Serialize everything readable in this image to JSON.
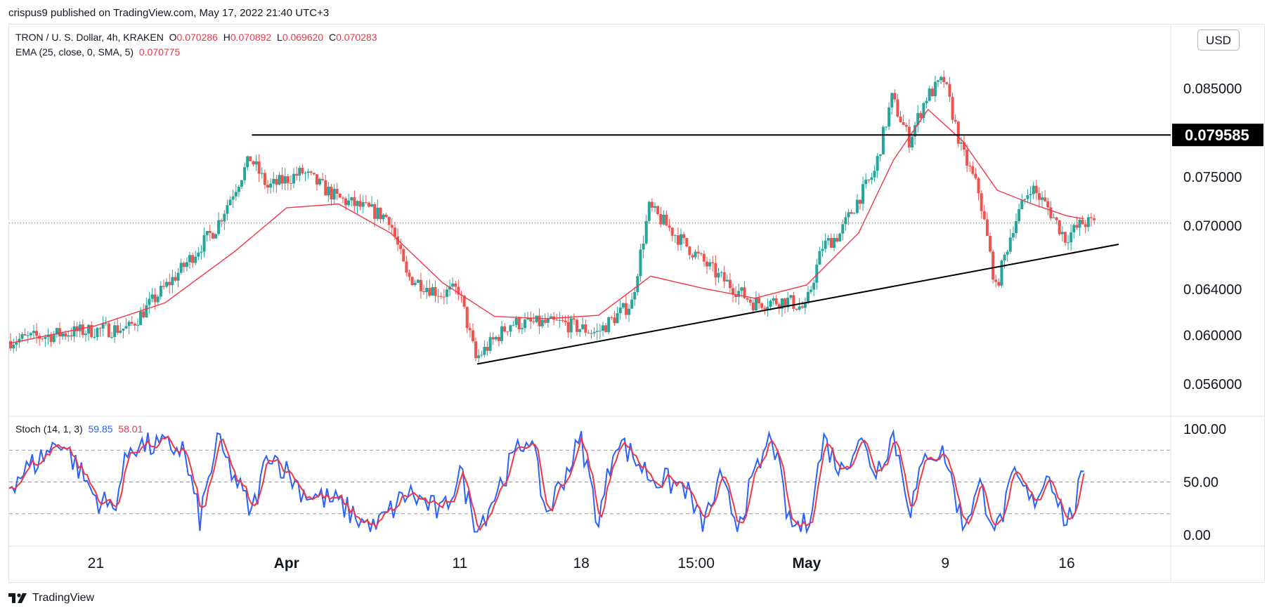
{
  "header": {
    "publisher_text": "crispus9 published on TradingView.com, May 17, 2022 21:40 UTC+3"
  },
  "legend": {
    "symbol": "TRON / U. S. Dollar, 4h, KRAKEN",
    "o_label": "O",
    "o_value": "0.070286",
    "h_label": "H",
    "h_value": "0.070892",
    "l_label": "L",
    "l_value": "0.069620",
    "c_label": "C",
    "c_value": "0.070283",
    "ema_label": "EMA (25, close, 0, SMA, 5)",
    "ema_value": "0.070775",
    "stoch_label": "Stoch (14, 1, 3)",
    "stoch_k": "59.85",
    "stoch_d": "58.01"
  },
  "currency_button": "USD",
  "footer": {
    "brand": "TradingView"
  },
  "colors": {
    "up": "#26a69a",
    "down": "#ef5350",
    "ema": "#f23645",
    "k": "#2962ff",
    "d": "#f23645",
    "grid": "#e0e3eb",
    "trend": "#000000"
  },
  "chart_data": [
    {
      "type": "candlestick",
      "title": "TRON / U. S. Dollar, 4h, KRAKEN",
      "y_scale": "log",
      "y_ticks": [
        "0.056000",
        "0.060000",
        "0.064000",
        "0.070000",
        "0.075000",
        "0.085000"
      ],
      "y_tick_values": [
        0.056,
        0.06,
        0.064,
        0.07,
        0.075,
        0.085
      ],
      "ylim": [
        0.0535,
        0.093
      ],
      "x_ticks": [
        "21",
        "Apr",
        "11",
        "18",
        "15:00",
        "May",
        "9",
        "16"
      ],
      "x_tick_dates": [
        "2022-03-21",
        "2022-04-01",
        "2022-04-11",
        "2022-04-18",
        "2022-04-24T15:00",
        "2022-05-01",
        "2022-05-09",
        "2022-05-16"
      ],
      "x_range": [
        "2022-03-16",
        "2022-05-22"
      ],
      "last_price": 0.070283,
      "resistance": {
        "value": 0.079585,
        "label": "0.079585",
        "from": "2022-03-30",
        "to": "2022-05-22"
      },
      "support_trendline": {
        "from": [
          "2022-04-12",
          0.0576
        ],
        "to": [
          "2022-05-19",
          0.0682
        ]
      },
      "ema_anchor_path": [
        [
          "2022-03-16",
          0.0593
        ],
        [
          "2022-03-21",
          0.0608
        ],
        [
          "2022-03-25",
          0.0628
        ],
        [
          "2022-03-29",
          0.0675
        ],
        [
          "2022-04-01",
          0.0718
        ],
        [
          "2022-04-04",
          0.0722
        ],
        [
          "2022-04-07",
          0.0693
        ],
        [
          "2022-04-10",
          0.0646
        ],
        [
          "2022-04-13",
          0.0616
        ],
        [
          "2022-04-16",
          0.0614
        ],
        [
          "2022-04-19",
          0.0617
        ],
        [
          "2022-04-22",
          0.0652
        ],
        [
          "2022-04-25",
          0.0641
        ],
        [
          "2022-04-28",
          0.0632
        ],
        [
          "2022-05-01",
          0.0644
        ],
        [
          "2022-05-04",
          0.0693
        ],
        [
          "2022-05-06",
          0.0768
        ],
        [
          "2022-05-08",
          0.0825
        ],
        [
          "2022-05-10",
          0.0789
        ],
        [
          "2022-05-12",
          0.0736
        ],
        [
          "2022-05-14",
          0.0722
        ],
        [
          "2022-05-16",
          0.071
        ],
        [
          "2022-05-17",
          0.0707
        ]
      ],
      "price_anchor_path": [
        [
          "2022-03-16",
          0.0595
        ],
        [
          "2022-03-20",
          0.0603
        ],
        [
          "2022-03-23",
          0.0606
        ],
        [
          "2022-03-26",
          0.0658
        ],
        [
          "2022-03-28",
          0.0698
        ],
        [
          "2022-03-30",
          0.077
        ],
        [
          "2022-03-31",
          0.0739
        ],
        [
          "2022-04-02",
          0.0755
        ],
        [
          "2022-04-04",
          0.0728
        ],
        [
          "2022-04-07",
          0.0708
        ],
        [
          "2022-04-08",
          0.0652
        ],
        [
          "2022-04-10",
          0.0636
        ],
        [
          "2022-04-11",
          0.064
        ],
        [
          "2022-04-12",
          0.058
        ],
        [
          "2022-04-14",
          0.061
        ],
        [
          "2022-04-17",
          0.061
        ],
        [
          "2022-04-19",
          0.0602
        ],
        [
          "2022-04-21",
          0.0628
        ],
        [
          "2022-04-22",
          0.0718
        ],
        [
          "2022-04-24",
          0.0683
        ],
        [
          "2022-04-26",
          0.0652
        ],
        [
          "2022-04-28",
          0.0628
        ],
        [
          "2022-04-30",
          0.063
        ],
        [
          "2022-05-01",
          0.0622
        ],
        [
          "2022-05-02",
          0.068
        ],
        [
          "2022-05-03",
          0.0692
        ],
        [
          "2022-05-04",
          0.0725
        ],
        [
          "2022-05-05",
          0.0755
        ],
        [
          "2022-05-06",
          0.0838
        ],
        [
          "2022-05-07",
          0.079
        ],
        [
          "2022-05-08",
          0.084
        ],
        [
          "2022-05-09",
          0.086
        ],
        [
          "2022-05-10",
          0.078
        ],
        [
          "2022-05-11",
          0.0735
        ],
        [
          "2022-05-12",
          0.064
        ],
        [
          "2022-05-13",
          0.07
        ],
        [
          "2022-05-14",
          0.074
        ],
        [
          "2022-05-15",
          0.0718
        ],
        [
          "2022-05-16",
          0.0688
        ],
        [
          "2022-05-17",
          0.0703
        ]
      ]
    },
    {
      "type": "line",
      "title": "Stoch (14, 1, 3)",
      "ylim": [
        0,
        100
      ],
      "y_ticks": [
        "0.00",
        "50.00",
        "100.00"
      ],
      "y_tick_values": [
        0,
        50,
        100
      ],
      "bands": [
        20,
        50,
        80
      ],
      "series": [
        {
          "name": "%K",
          "last": 59.85
        },
        {
          "name": "%D",
          "last": 58.01
        }
      ],
      "k_anchor_path": [
        [
          "2022-03-16",
          48
        ],
        [
          "2022-03-18",
          75
        ],
        [
          "2022-03-19",
          90
        ],
        [
          "2022-03-21",
          35
        ],
        [
          "2022-03-22",
          25
        ],
        [
          "2022-03-23",
          85
        ],
        [
          "2022-03-26",
          82
        ],
        [
          "2022-03-27",
          15
        ],
        [
          "2022-03-28",
          88
        ],
        [
          "2022-03-30",
          20
        ],
        [
          "2022-03-31",
          80
        ],
        [
          "2022-04-02",
          40
        ],
        [
          "2022-04-04",
          30
        ],
        [
          "2022-04-06",
          5
        ],
        [
          "2022-04-08",
          40
        ],
        [
          "2022-04-10",
          20
        ],
        [
          "2022-04-11",
          60
        ],
        [
          "2022-04-12",
          5
        ],
        [
          "2022-04-14",
          70
        ],
        [
          "2022-04-15",
          95
        ],
        [
          "2022-04-16",
          20
        ],
        [
          "2022-04-18",
          90
        ],
        [
          "2022-04-19",
          12
        ],
        [
          "2022-04-20",
          92
        ],
        [
          "2022-04-22",
          55
        ],
        [
          "2022-04-24",
          45
        ],
        [
          "2022-04-25",
          8
        ],
        [
          "2022-04-26",
          50
        ],
        [
          "2022-04-27",
          12
        ],
        [
          "2022-04-29",
          95
        ],
        [
          "2022-04-30",
          10
        ],
        [
          "2022-05-01",
          8
        ],
        [
          "2022-05-02",
          90
        ],
        [
          "2022-05-03",
          60
        ],
        [
          "2022-05-04",
          92
        ],
        [
          "2022-05-05",
          60
        ],
        [
          "2022-05-06",
          95
        ],
        [
          "2022-05-07",
          25
        ],
        [
          "2022-05-08",
          80
        ],
        [
          "2022-05-09",
          75
        ],
        [
          "2022-05-10",
          10
        ],
        [
          "2022-05-11",
          45
        ],
        [
          "2022-05-12",
          5
        ],
        [
          "2022-05-13",
          55
        ],
        [
          "2022-05-14",
          30
        ],
        [
          "2022-05-15",
          60
        ],
        [
          "2022-05-16",
          10
        ],
        [
          "2022-05-16T12:00",
          30
        ],
        [
          "2022-05-17",
          60
        ]
      ]
    }
  ]
}
